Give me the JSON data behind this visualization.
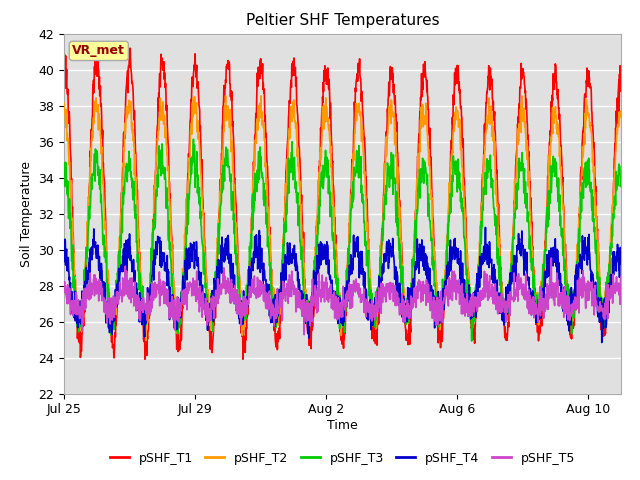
{
  "title": "Peltier SHF Temperatures",
  "xlabel": "Time",
  "ylabel": "Soil Temperature",
  "ylim": [
    22,
    42
  ],
  "xlim_days": [
    0,
    17
  ],
  "xtick_positions": [
    0,
    4,
    8,
    12,
    16
  ],
  "xtick_labels": [
    "Jul 25",
    "Jul 29",
    "Aug 2",
    "Aug 6",
    "Aug 10"
  ],
  "figure_bg": "#ffffff",
  "plot_bg_color": "#e0e0e0",
  "plot_bg_top": "#d8d8d8",
  "grid_color": "#ffffff",
  "annotation_text": "VR_met",
  "annotation_bg": "#ffff99",
  "annotation_border": "#aaaaaa",
  "annotation_text_color": "#990000",
  "legend_colors": [
    "#ff0000",
    "#ff9900",
    "#00cc00",
    "#0000cc",
    "#cc44cc"
  ],
  "legend_labels": [
    "pSHF_T1",
    "pSHF_T2",
    "pSHF_T3",
    "pSHF_T4",
    "pSHF_T5"
  ],
  "period_days": 1.0,
  "num_points": 1700,
  "days_total": 17,
  "T1_params": {
    "mean": 32.5,
    "amp_start": 8.0,
    "amp_end": 7.0,
    "phase": 0.0,
    "noise": 0.4
  },
  "T2_params": {
    "mean": 32.0,
    "amp_start": 6.0,
    "amp_end": 5.5,
    "phase": 0.08,
    "noise": 0.4
  },
  "T3_params": {
    "mean": 30.5,
    "amp_start": 4.5,
    "amp_end": 4.0,
    "phase": 0.2,
    "noise": 0.5
  },
  "T4_params": {
    "mean": 28.2,
    "amp_start": 2.0,
    "amp_end": 1.5,
    "phase": 0.5,
    "noise": 0.5
  },
  "T5_params": {
    "mean": 27.3,
    "amp_start": 0.7,
    "amp_end": 0.6,
    "phase": 0.6,
    "noise": 0.4
  }
}
